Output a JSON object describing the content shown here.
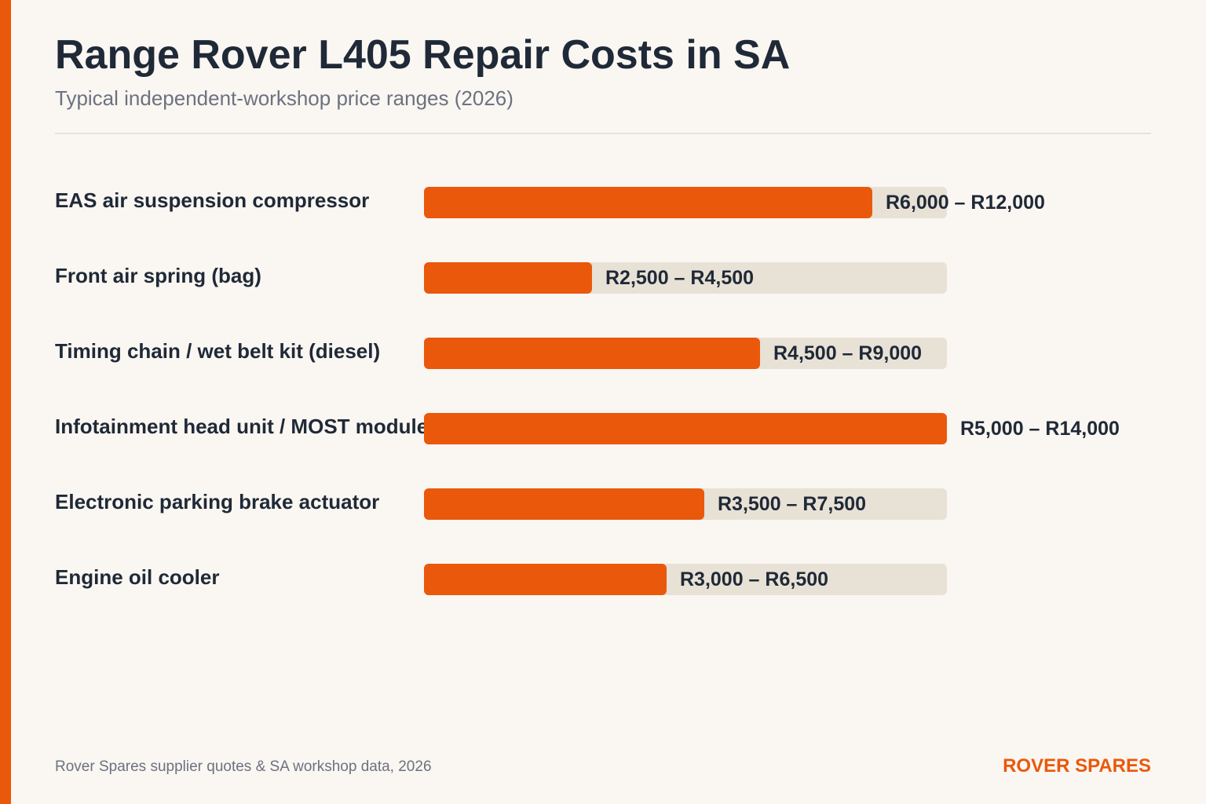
{
  "colors": {
    "accent": "#ea580c",
    "track": "#e8e1d5",
    "text": "#1f2937",
    "muted": "#6b7280",
    "background": "#faf6f1"
  },
  "header": {
    "title": "Range Rover L405 Repair Costs in SA",
    "subtitle": "Typical independent-workshop price ranges (2026)"
  },
  "chart_data": {
    "type": "bar",
    "orientation": "horizontal",
    "title": "Range Rover L405 Repair Costs in SA",
    "subtitle": "Typical independent-workshop price ranges (2026)",
    "grid": false,
    "categories": [
      "EAS air suspension compressor",
      "Front air spring (bag)",
      "Timing chain / wet belt kit (diesel)",
      "Infotainment head unit / MOST module",
      "Electronic parking brake actuator",
      "Engine oil cooler"
    ],
    "values": [
      12000,
      4500,
      9000,
      14000,
      7500,
      6500
    ],
    "value_labels": [
      "R6,000 – R12,000",
      "R2,500 – R4,500",
      "R4,500 – R9,000",
      "R5,000 – R14,000",
      "R3,500 – R7,500",
      "R3,000 – R6,500"
    ],
    "xlim": [
      0,
      14000
    ]
  },
  "footer": {
    "source": "Rover Spares supplier quotes & SA workshop data, 2026",
    "brand": "ROVER SPARES"
  }
}
